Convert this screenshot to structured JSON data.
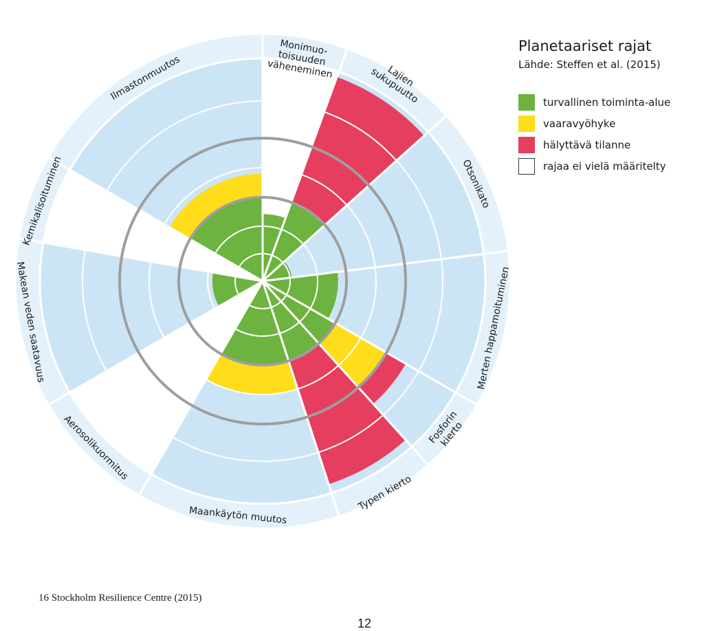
{
  "legend": {
    "title": "Planetaariset rajat",
    "source": "Lähde: Steffen et al. (2015)",
    "items": [
      {
        "label": "turvallinen toiminta-alue",
        "color": "#6db33f"
      },
      {
        "label": "vaaravyöhyke",
        "color": "#ffdd1a"
      },
      {
        "label": "hälyttävä tilanne",
        "color": "#e63e5e"
      },
      {
        "label": "rajaa ei vielä määritelty",
        "color": "#ffffff"
      }
    ]
  },
  "colors": {
    "background_sector": "#e4f1fb",
    "band_fill": "#cce5f6",
    "safe": "#6db33f",
    "danger": "#ffdd1a",
    "alarm": "#e63e5e",
    "undefined": "#ffffff",
    "boundary_ring": "#9e9e9e"
  },
  "chart_data": {
    "type": "radial",
    "title": "Planetaariset rajat",
    "source": "Lähde: Steffen et al. (2015)",
    "boundaries": [
      {
        "label_lines": [
          "Ilmastonmuutos"
        ],
        "status": "vaaravyöhyke",
        "level": 1.4
      },
      {
        "label_lines": [
          "Monimuo-",
          "toisuuden",
          "väheneminen"
        ],
        "status": "rajaa ei vielä määritelty",
        "level": 0.8
      },
      {
        "label_lines": [
          "Lajien",
          "sukupuutto"
        ],
        "status": "hälyttävä tilanne",
        "level": 4.0
      },
      {
        "label_lines": [
          "Otsonikato"
        ],
        "status": "turvallinen toiminta-alue",
        "level": 0.35
      },
      {
        "label_lines": [
          "Merten happamoituminen"
        ],
        "status": "turvallinen toiminta-alue",
        "level": 0.9
      },
      {
        "label_lines": [
          "Fosforin",
          "kierto"
        ],
        "status": "hälyttävä tilanne",
        "level": 2.6
      },
      {
        "label_lines": [
          "Typen kierto"
        ],
        "status": "hälyttävä tilanne",
        "level": 3.9
      },
      {
        "label_lines": [
          "Maankäytön muutos"
        ],
        "status": "vaaravyöhyke",
        "level": 1.5
      },
      {
        "label_lines": [
          "Aerosolikuormitus"
        ],
        "status": "rajaa ei vielä määritelty",
        "level": 0
      },
      {
        "label_lines": [
          "Makean veden saatavuus"
        ],
        "status": "turvallinen toiminta-alue",
        "level": 0.6
      },
      {
        "label_lines": [
          "Kemikalisoituminen"
        ],
        "status": "rajaa ei vielä määritelty",
        "level": 0
      }
    ]
  },
  "footnote": "16  Stockholm Resilience Centre (2015)",
  "page_number": "12"
}
